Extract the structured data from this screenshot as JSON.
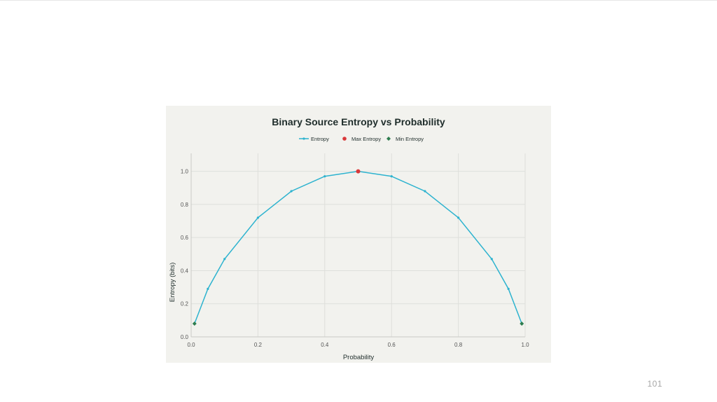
{
  "slide": {
    "page_number": "101"
  },
  "colors": {
    "panel_background": "#f2f2ee",
    "grid": "#dedfdb",
    "axis": "#c9cac6",
    "entropy_line": "#2db3cf",
    "max_marker": "#d9383a",
    "min_marker": "#2e7d4f",
    "title_text": "#1f2d2b",
    "tick_text": "#555555"
  },
  "chart_data": {
    "type": "line",
    "title": "Binary Source Entropy vs Probability",
    "xlabel": "Probability",
    "ylabel": "Entropy (bits)",
    "xlim": [
      0,
      1
    ],
    "ylim": [
      0,
      1.1
    ],
    "x_ticks": [
      "0.0",
      "0.2",
      "0.4",
      "0.6",
      "0.8",
      "1.0"
    ],
    "y_ticks": [
      "0.0",
      "0.2",
      "0.4",
      "0.6",
      "0.8",
      "1.0"
    ],
    "grid": true,
    "legend_position": "top-center",
    "series": [
      {
        "name": "Entropy",
        "kind": "line",
        "x": [
          0.01,
          0.05,
          0.1,
          0.2,
          0.3,
          0.4,
          0.5,
          0.6,
          0.7,
          0.8,
          0.9,
          0.95,
          0.99
        ],
        "y": [
          0.08,
          0.29,
          0.47,
          0.72,
          0.88,
          0.97,
          1.0,
          0.97,
          0.88,
          0.72,
          0.47,
          0.29,
          0.08
        ]
      },
      {
        "name": "Max Entropy",
        "kind": "marker-circle",
        "x": [
          0.5
        ],
        "y": [
          1.0
        ]
      },
      {
        "name": "Min Entropy",
        "kind": "marker-diamond",
        "x": [
          0.01,
          0.99
        ],
        "y": [
          0.08,
          0.08
        ]
      }
    ]
  }
}
